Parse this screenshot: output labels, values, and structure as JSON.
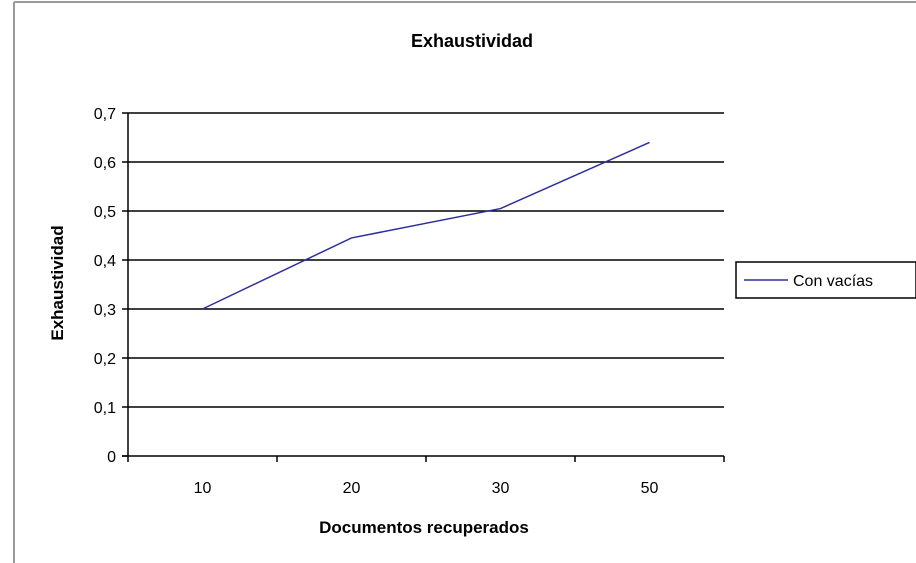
{
  "chart_data": {
    "type": "line",
    "title": "Exhaustividad",
    "xlabel": "Documentos recuperados",
    "ylabel": "Exhaustividad",
    "categories": [
      "10",
      "20",
      "30",
      "50"
    ],
    "series": [
      {
        "name": "Con vacías",
        "values": [
          0.3,
          0.445,
          0.505,
          0.64
        ]
      }
    ],
    "ylim": [
      0,
      0.7
    ],
    "yticks": [
      "0",
      "0,1",
      "0,2",
      "0,3",
      "0,4",
      "0,5",
      "0,6",
      "0,7"
    ],
    "grid": true,
    "legend": "right",
    "colors": {
      "series": "#2e2e9e",
      "grid": "#000000",
      "axis": "#000000"
    }
  }
}
